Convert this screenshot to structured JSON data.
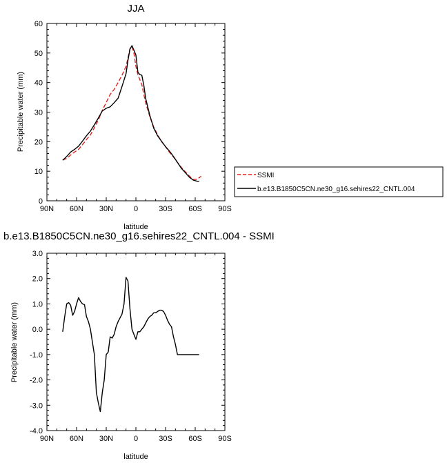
{
  "chart_data": [
    {
      "type": "line",
      "title": "JJA",
      "xlabel": "latitude",
      "ylabel": "Precipitable water (mm)",
      "xlim": [
        90,
        -90
      ],
      "ylim": [
        0,
        60
      ],
      "x_ticks": [
        90,
        60,
        30,
        0,
        -30,
        -60,
        -90
      ],
      "x_tick_labels": [
        "90N",
        "60N",
        "30N",
        "0",
        "30S",
        "60S",
        "90S"
      ],
      "y_ticks": [
        0,
        10,
        20,
        30,
        40,
        50,
        60
      ],
      "y_tick_labels": [
        "0",
        "10",
        "20",
        "30",
        "40",
        "50",
        "60"
      ],
      "grid": false,
      "legend_position": "right",
      "series": [
        {
          "name": "SSMI",
          "color": "#dd2222",
          "dash": "dashed",
          "x": [
            74,
            70,
            66,
            62,
            58,
            54,
            50,
            46,
            42,
            38,
            34,
            30,
            26,
            22,
            18,
            14,
            10,
            8,
            6,
            4,
            2,
            0,
            -2,
            -4,
            -6,
            -8,
            -10,
            -14,
            -18,
            -22,
            -26,
            -30,
            -34,
            -38,
            -42,
            -46,
            -50,
            -54,
            -58,
            -62,
            -66
          ],
          "y": [
            13.8,
            14.3,
            15.5,
            16.5,
            17.4,
            19.0,
            20.7,
            22.3,
            24.7,
            27.3,
            30.6,
            33.3,
            36.0,
            37.7,
            40.0,
            42.5,
            45.5,
            48.3,
            51.5,
            52.2,
            50.0,
            45.5,
            42.7,
            41.0,
            39.3,
            36.0,
            33.0,
            28.5,
            25.0,
            22.3,
            20.0,
            18.3,
            16.4,
            14.8,
            13.0,
            11.3,
            9.8,
            8.4,
            7.2,
            7.3,
            8.3
          ]
        },
        {
          "name": "b.e13.B1850C5CN.ne30_g16.sehires22_CNTL.004",
          "color": "#000000",
          "dash": "solid",
          "x": [
            74,
            70,
            66,
            62,
            58,
            54,
            50,
            46,
            42,
            38,
            34,
            30,
            26,
            22,
            18,
            14,
            10,
            8,
            6,
            4,
            2,
            0,
            -2,
            -4,
            -6,
            -8,
            -10,
            -14,
            -18,
            -22,
            -26,
            -30,
            -34,
            -38,
            -42,
            -46,
            -50,
            -54,
            -58,
            -62,
            -64
          ],
          "y": [
            13.7,
            15.0,
            16.5,
            17.4,
            18.5,
            20.2,
            22.0,
            23.6,
            25.7,
            28.0,
            30.4,
            31.3,
            31.8,
            33.2,
            34.7,
            38.7,
            43.0,
            47.5,
            51.3,
            52.5,
            51.0,
            49.3,
            43.5,
            42.7,
            42.5,
            39.0,
            34.5,
            29.0,
            24.6,
            22.0,
            20.1,
            18.3,
            16.8,
            15.0,
            13.0,
            11.0,
            9.5,
            8.0,
            7.0,
            6.6,
            6.6
          ]
        }
      ]
    },
    {
      "type": "line",
      "title": "b.e13.B1850C5CN.ne30_g16.sehires22_CNTL.004 - SSMI",
      "xlabel": "latitude",
      "ylabel": "Precipitable water (mm)",
      "xlim": [
        90,
        -90
      ],
      "ylim": [
        -4.0,
        3.0
      ],
      "x_ticks": [
        90,
        60,
        30,
        0,
        -30,
        -60,
        -90
      ],
      "x_tick_labels": [
        "90N",
        "60N",
        "30N",
        "0",
        "30S",
        "60S",
        "90S"
      ],
      "y_ticks": [
        -4.0,
        -3.0,
        -2.0,
        -1.0,
        0.0,
        1.0,
        2.0,
        3.0
      ],
      "y_tick_labels": [
        "-4.0",
        "-3.0",
        "-2.0",
        "-1.0",
        "0.0",
        "1.0",
        "2.0",
        "3.0"
      ],
      "grid": false,
      "series": [
        {
          "color": "#000000",
          "dash": "solid",
          "x": [
            74,
            72,
            70,
            68,
            66,
            64,
            62,
            60,
            58,
            56,
            54,
            52,
            50,
            48,
            46,
            44,
            42,
            40,
            38,
            36,
            34,
            32,
            30,
            28,
            26,
            24,
            22,
            20,
            18,
            16,
            14,
            12,
            10,
            8,
            6,
            4,
            2,
            0,
            -2,
            -4,
            -6,
            -8,
            -10,
            -12,
            -14,
            -16,
            -18,
            -20,
            -22,
            -24,
            -26,
            -28,
            -30,
            -32,
            -34,
            -36,
            -38,
            -40,
            -42,
            -44,
            -46,
            -48,
            -50,
            -52,
            -54,
            -56,
            -58,
            -60,
            -62,
            -64
          ],
          "y": [
            -0.1,
            0.5,
            1.0,
            1.05,
            0.95,
            0.55,
            0.7,
            1.0,
            1.25,
            1.1,
            1.0,
            0.97,
            0.5,
            0.3,
            0.0,
            -0.5,
            -1.0,
            -2.5,
            -2.9,
            -3.25,
            -2.5,
            -2.0,
            -1.0,
            -0.9,
            -0.3,
            -0.35,
            -0.2,
            0.1,
            0.3,
            0.45,
            0.6,
            1.0,
            2.05,
            1.9,
            0.8,
            0.0,
            -0.2,
            -0.4,
            -0.1,
            -0.1,
            0.0,
            0.1,
            0.25,
            0.4,
            0.5,
            0.55,
            0.65,
            0.65,
            0.7,
            0.75,
            0.75,
            0.7,
            0.55,
            0.35,
            0.2,
            0.1,
            -0.3,
            -0.6,
            -1.0,
            -1.0,
            -1.0,
            -1.0,
            -1.0,
            -1.0,
            -1.0,
            -1.0,
            -1.0,
            -1.0,
            -1.0,
            -1.0
          ]
        }
      ]
    }
  ]
}
